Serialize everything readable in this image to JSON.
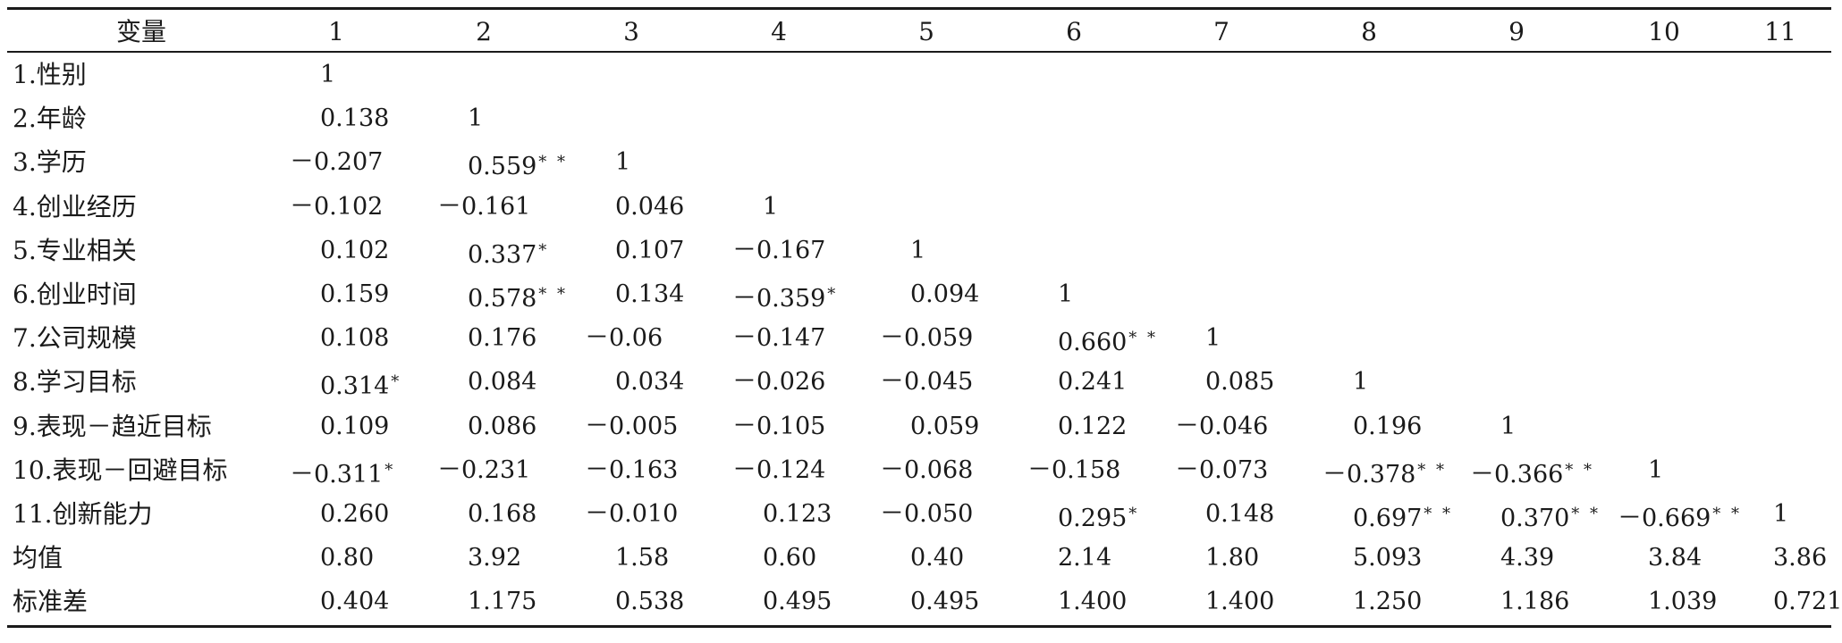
{
  "table": {
    "header": {
      "variable_label": "变量",
      "columns": [
        "1",
        "2",
        "3",
        "4",
        "5",
        "6",
        "7",
        "8",
        "9",
        "10",
        "11"
      ]
    },
    "rows": [
      {
        "label": "1.性别",
        "cells": [
          {
            "v": "1",
            "s": ""
          }
        ]
      },
      {
        "label": "2.年龄",
        "cells": [
          {
            "v": "0.138",
            "s": ""
          },
          {
            "v": "1",
            "s": ""
          }
        ]
      },
      {
        "label": "3.学历",
        "cells": [
          {
            "v": "－0.207",
            "s": ""
          },
          {
            "v": "0.559",
            "s": "* *"
          },
          {
            "v": "1",
            "s": ""
          }
        ]
      },
      {
        "label": "4.创业经历",
        "cells": [
          {
            "v": "－0.102",
            "s": ""
          },
          {
            "v": "－0.161",
            "s": ""
          },
          {
            "v": "0.046",
            "s": ""
          },
          {
            "v": "1",
            "s": ""
          }
        ]
      },
      {
        "label": "5.专业相关",
        "cells": [
          {
            "v": "0.102",
            "s": ""
          },
          {
            "v": "0.337",
            "s": "*"
          },
          {
            "v": "0.107",
            "s": ""
          },
          {
            "v": "－0.167",
            "s": ""
          },
          {
            "v": "1",
            "s": ""
          }
        ]
      },
      {
        "label": "6.创业时间",
        "cells": [
          {
            "v": "0.159",
            "s": ""
          },
          {
            "v": "0.578",
            "s": "* *"
          },
          {
            "v": "0.134",
            "s": ""
          },
          {
            "v": "－0.359",
            "s": "*"
          },
          {
            "v": "0.094",
            "s": ""
          },
          {
            "v": "1",
            "s": ""
          }
        ]
      },
      {
        "label": "7.公司规模",
        "cells": [
          {
            "v": "0.108",
            "s": ""
          },
          {
            "v": "0.176",
            "s": ""
          },
          {
            "v": "－0.06",
            "s": ""
          },
          {
            "v": "－0.147",
            "s": ""
          },
          {
            "v": "－0.059",
            "s": ""
          },
          {
            "v": "0.660",
            "s": "* *"
          },
          {
            "v": "1",
            "s": ""
          }
        ]
      },
      {
        "label": "8.学习目标",
        "cells": [
          {
            "v": "0.314",
            "s": "*"
          },
          {
            "v": "0.084",
            "s": ""
          },
          {
            "v": "0.034",
            "s": ""
          },
          {
            "v": "－0.026",
            "s": ""
          },
          {
            "v": "－0.045",
            "s": ""
          },
          {
            "v": "0.241",
            "s": ""
          },
          {
            "v": "0.085",
            "s": ""
          },
          {
            "v": "1",
            "s": ""
          }
        ]
      },
      {
        "label": "9.表现－趋近目标",
        "cells": [
          {
            "v": "0.109",
            "s": ""
          },
          {
            "v": "0.086",
            "s": ""
          },
          {
            "v": "－0.005",
            "s": ""
          },
          {
            "v": "－0.105",
            "s": ""
          },
          {
            "v": "0.059",
            "s": ""
          },
          {
            "v": "0.122",
            "s": ""
          },
          {
            "v": "－0.046",
            "s": ""
          },
          {
            "v": "0.196",
            "s": ""
          },
          {
            "v": "1",
            "s": ""
          }
        ]
      },
      {
        "label": "10.表现－回避目标",
        "cells": [
          {
            "v": "－0.311",
            "s": "*"
          },
          {
            "v": "－0.231",
            "s": ""
          },
          {
            "v": "－0.163",
            "s": ""
          },
          {
            "v": "－0.124",
            "s": ""
          },
          {
            "v": "－0.068",
            "s": ""
          },
          {
            "v": "－0.158",
            "s": ""
          },
          {
            "v": "－0.073",
            "s": ""
          },
          {
            "v": "－0.378",
            "s": "* *"
          },
          {
            "v": "－0.366",
            "s": "* *"
          },
          {
            "v": "1",
            "s": ""
          }
        ]
      },
      {
        "label": "11.创新能力",
        "cells": [
          {
            "v": "0.260",
            "s": ""
          },
          {
            "v": "0.168",
            "s": ""
          },
          {
            "v": "－0.010",
            "s": ""
          },
          {
            "v": "0.123",
            "s": ""
          },
          {
            "v": "－0.050",
            "s": ""
          },
          {
            "v": "0.295",
            "s": "*"
          },
          {
            "v": "0.148",
            "s": ""
          },
          {
            "v": "0.697",
            "s": "* *"
          },
          {
            "v": "0.370",
            "s": "* *"
          },
          {
            "v": "－0.669",
            "s": "* *"
          },
          {
            "v": "1",
            "s": ""
          }
        ]
      },
      {
        "label": "均值",
        "cells": [
          {
            "v": "0.80",
            "s": ""
          },
          {
            "v": "3.92",
            "s": ""
          },
          {
            "v": "1.58",
            "s": ""
          },
          {
            "v": "0.60",
            "s": ""
          },
          {
            "v": "0.40",
            "s": ""
          },
          {
            "v": "2.14",
            "s": ""
          },
          {
            "v": "1.80",
            "s": ""
          },
          {
            "v": "5.093",
            "s": ""
          },
          {
            "v": "4.39",
            "s": ""
          },
          {
            "v": "3.84",
            "s": ""
          },
          {
            "v": "3.86",
            "s": ""
          }
        ]
      },
      {
        "label": "标准差",
        "cells": [
          {
            "v": "0.404",
            "s": ""
          },
          {
            "v": "1.175",
            "s": ""
          },
          {
            "v": "0.538",
            "s": ""
          },
          {
            "v": "0.495",
            "s": ""
          },
          {
            "v": "0.495",
            "s": ""
          },
          {
            "v": "1.400",
            "s": ""
          },
          {
            "v": "1.400",
            "s": ""
          },
          {
            "v": "1.250",
            "s": ""
          },
          {
            "v": "1.186",
            "s": ""
          },
          {
            "v": "1.039",
            "s": ""
          },
          {
            "v": "0.721",
            "s": ""
          }
        ]
      }
    ]
  }
}
